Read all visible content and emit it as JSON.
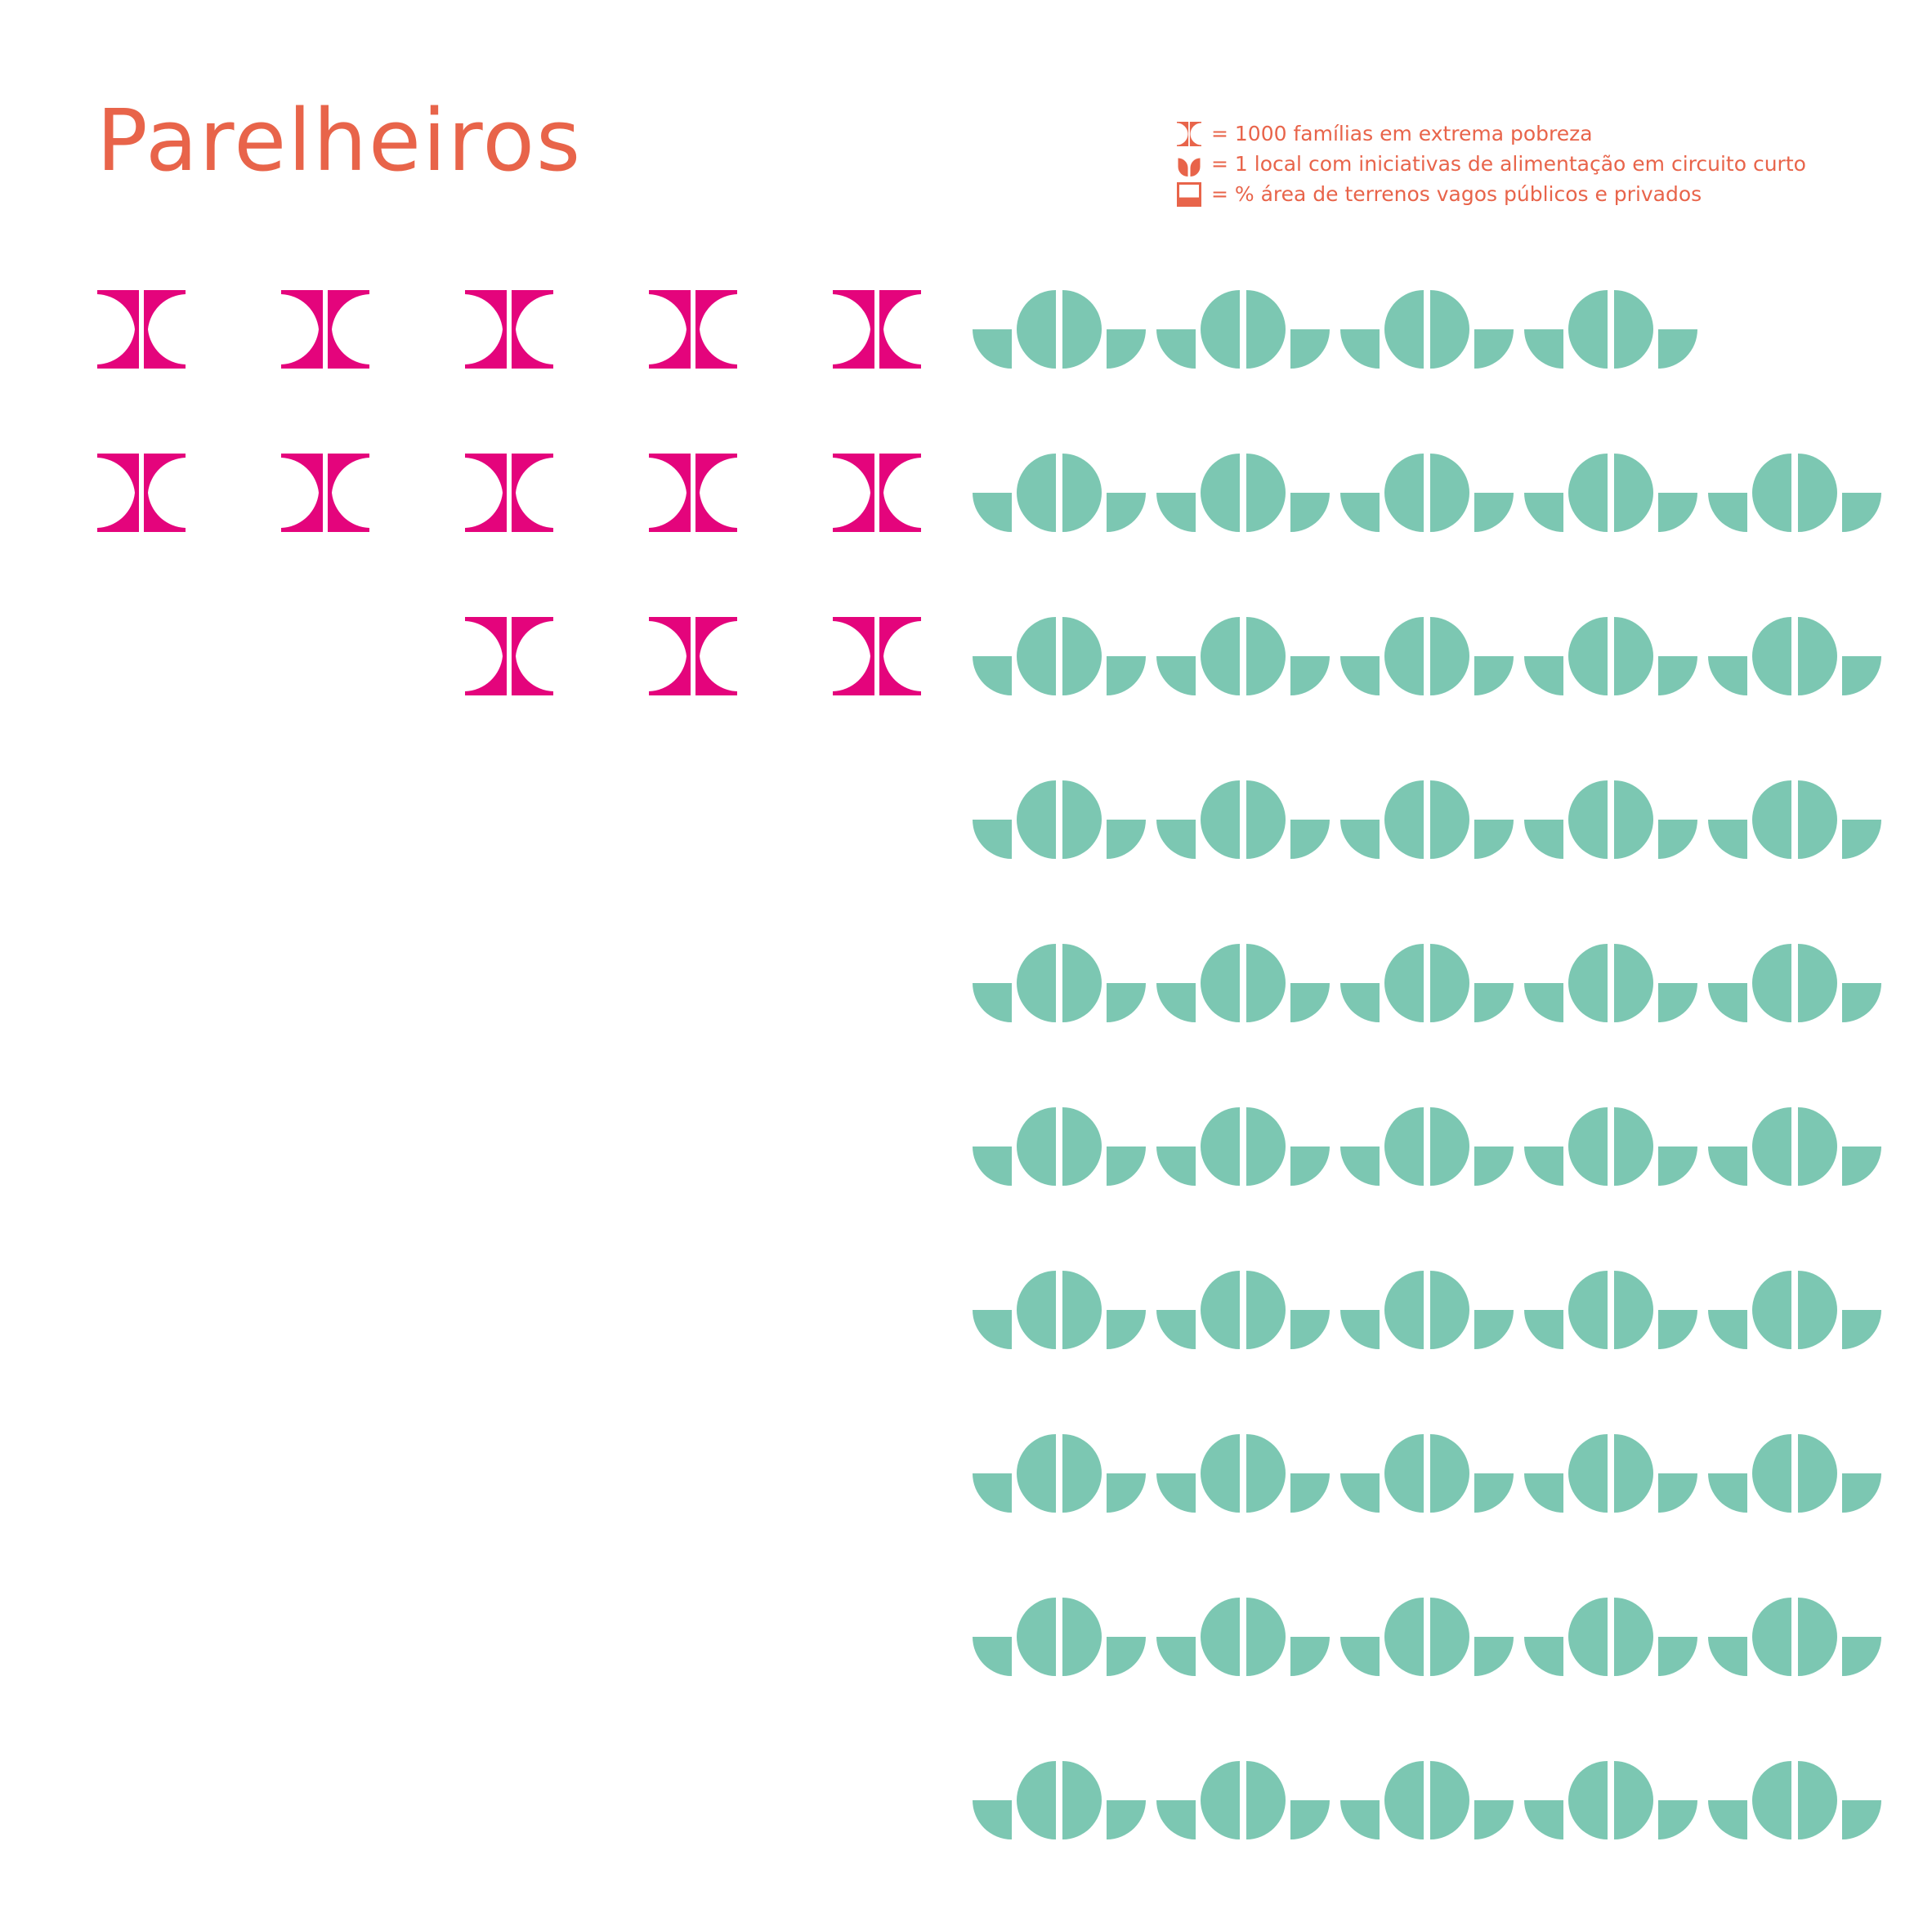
{
  "title": "Parelheiros",
  "legend": {
    "families": "= 1000 famílias em extrema pobreza",
    "food_sites": "= 1 local com iniciativas de alimentação em circuito curto",
    "vacant_land": "= % área de terrenos vagos públicos e privados"
  },
  "values": {
    "families_in_extreme_poverty_icons": 13,
    "food_initiative_site_icons": 49,
    "vacant_land_percent_icons": 0
  },
  "icons": {
    "families": "butterfly-icon",
    "food_sites": "leaf-icon",
    "vacant_land": "square-icon"
  },
  "colors": {
    "title": "#e8644a",
    "legend_text": "#e8644a",
    "families": "#e4047c",
    "food_sites": "#7cc7b2",
    "background": "#ffffff"
  }
}
